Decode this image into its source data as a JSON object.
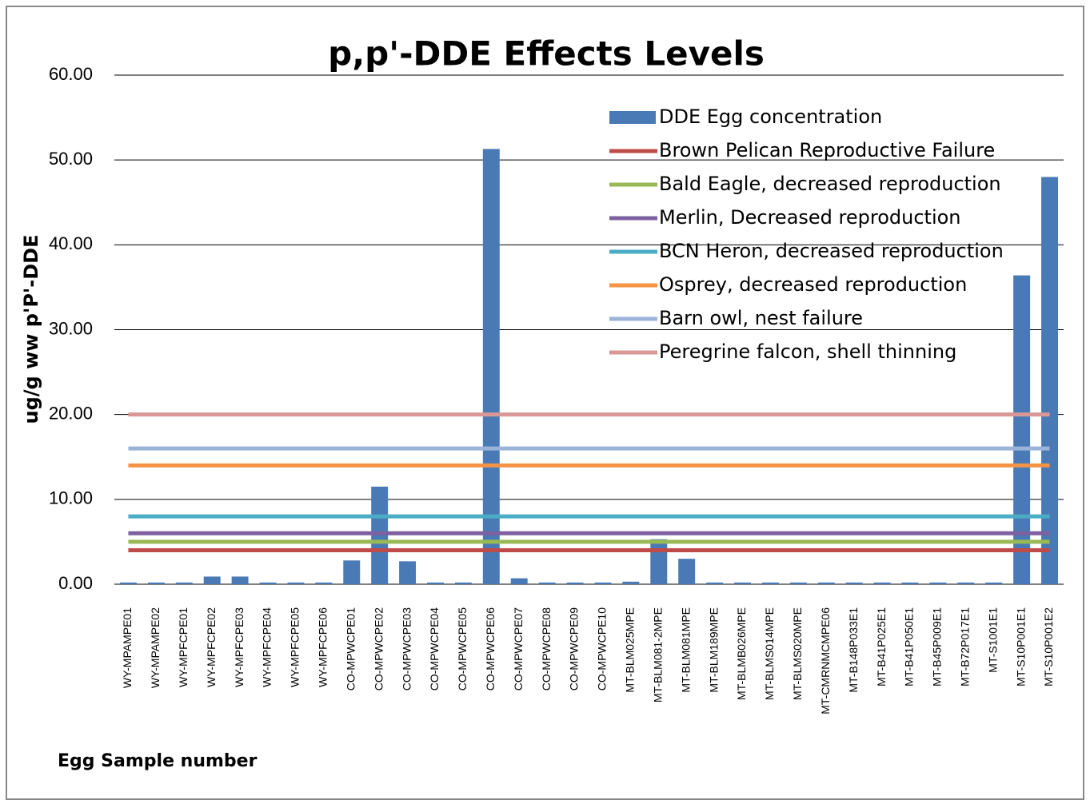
{
  "chart_data": {
    "type": "bar",
    "title": "p,p'-DDE Effects Levels",
    "y_label": "ug/g ww p'P'-DDE",
    "x_label": "Egg Sample number",
    "categories": [
      "WY-MPAMPE01",
      "WY-MPAMPE02",
      "WY-MPFCPE01",
      "WY-MPFCPE02",
      "WY-MPFCPE03",
      "WY-MPFCPE04",
      "WY-MPFCPE05",
      "WY-MPFCPE06",
      "CO-MPWCPE01",
      "CO-MPWCPE02",
      "CO-MPWCPE03",
      "CO-MPWCPE04",
      "CO-MPWCPE05",
      "CO-MPWCPE06",
      "CO-MPWCPE07",
      "CO-MPWCPE08",
      "CO-MPWCPE09",
      "CO-MPWCPE10",
      "MT-BLM025MPE",
      "MT-BLM081-2MPE",
      "MT-BLM081MPE",
      "MT-BLM189MPE",
      "MT-BLMB026MPE",
      "MT-BLMS014MPE",
      "MT-BLMS020MPE",
      "MT-CMRNMCMPE06",
      "MT-B148P033E1",
      "MT-B41P025E1",
      "MT-B41P050E1",
      "MT-B45P009E1",
      "MT-B72P017E1",
      "MT-S1001E1",
      "MT-S10P001E1",
      "MT-S10P001E2"
    ],
    "series": [
      {
        "name": "DDE Egg concentration",
        "color": "#4a7ab5",
        "kind": "bar",
        "values": [
          0.2,
          0.2,
          0.2,
          0.9,
          0.9,
          0.2,
          0.2,
          0.2,
          2.8,
          11.5,
          2.7,
          0.2,
          0.2,
          51.3,
          0.7,
          0.2,
          0.2,
          0.2,
          0.3,
          5.3,
          3.0,
          0.2,
          0.2,
          0.2,
          0.2,
          0.2,
          0.2,
          0.2,
          0.2,
          0.2,
          0.2,
          0.2,
          36.4,
          48.0
        ]
      },
      {
        "name": "Brown Pelican Reproductive Failure",
        "color": "#be4b48",
        "kind": "line",
        "values": [
          4,
          4,
          4,
          4,
          4,
          4,
          4,
          4,
          4,
          4,
          4,
          4,
          4,
          4,
          4,
          4,
          4,
          4,
          4,
          4,
          4,
          4,
          4,
          4,
          4,
          4,
          4,
          4,
          4,
          4,
          4,
          4,
          4,
          4
        ]
      },
      {
        "name": "Bald Eagle, decreased reproduction",
        "color": "#98b954",
        "kind": "line",
        "values": [
          5,
          5,
          5,
          5,
          5,
          5,
          5,
          5,
          5,
          5,
          5,
          5,
          5,
          5,
          5,
          5,
          5,
          5,
          5,
          5,
          5,
          5,
          5,
          5,
          5,
          5,
          5,
          5,
          5,
          5,
          5,
          5,
          5,
          5
        ]
      },
      {
        "name": "Merlin, Decreased reproduction",
        "color": "#7d60a0",
        "kind": "line",
        "values": [
          6,
          6,
          6,
          6,
          6,
          6,
          6,
          6,
          6,
          6,
          6,
          6,
          6,
          6,
          6,
          6,
          6,
          6,
          6,
          6,
          6,
          6,
          6,
          6,
          6,
          6,
          6,
          6,
          6,
          6,
          6,
          6,
          6,
          6
        ]
      },
      {
        "name": "BCN Heron, decreased reproduction",
        "color": "#4aacc5",
        "kind": "line",
        "values": [
          8,
          8,
          8,
          8,
          8,
          8,
          8,
          8,
          8,
          8,
          8,
          8,
          8,
          8,
          8,
          8,
          8,
          8,
          8,
          8,
          8,
          8,
          8,
          8,
          8,
          8,
          8,
          8,
          8,
          8,
          8,
          8,
          8,
          8
        ]
      },
      {
        "name": "Osprey, decreased reproduction",
        "color": "#f59447",
        "kind": "line",
        "values": [
          14,
          14,
          14,
          14,
          14,
          14,
          14,
          14,
          14,
          14,
          14,
          14,
          14,
          14,
          14,
          14,
          14,
          14,
          14,
          14,
          14,
          14,
          14,
          14,
          14,
          14,
          14,
          14,
          14,
          14,
          14,
          14,
          14,
          14
        ]
      },
      {
        "name": "Barn owl, nest failure",
        "color": "#9bb3d8",
        "kind": "line",
        "values": [
          16,
          16,
          16,
          16,
          16,
          16,
          16,
          16,
          16,
          16,
          16,
          16,
          16,
          16,
          16,
          16,
          16,
          16,
          16,
          16,
          16,
          16,
          16,
          16,
          16,
          16,
          16,
          16,
          16,
          16,
          16,
          16,
          16,
          16
        ]
      },
      {
        "name": "Peregrine falcon, shell thinning",
        "color": "#d99795",
        "kind": "line",
        "values": [
          20,
          20,
          20,
          20,
          20,
          20,
          20,
          20,
          20,
          20,
          20,
          20,
          20,
          20,
          20,
          20,
          20,
          20,
          20,
          20,
          20,
          20,
          20,
          20,
          20,
          20,
          20,
          20,
          20,
          20,
          20,
          20,
          20,
          20
        ]
      }
    ],
    "ylim": [
      0,
      60
    ],
    "yticks": [
      {
        "value": 0,
        "label": "0.00"
      },
      {
        "value": 10,
        "label": "10.00"
      },
      {
        "value": 20,
        "label": "20.00"
      },
      {
        "value": 30,
        "label": "30.00"
      },
      {
        "value": 40,
        "label": "40.00"
      },
      {
        "value": 50,
        "label": "50.00"
      },
      {
        "value": 60,
        "label": "60.00"
      }
    ],
    "grid": true,
    "legend": "top-right"
  }
}
